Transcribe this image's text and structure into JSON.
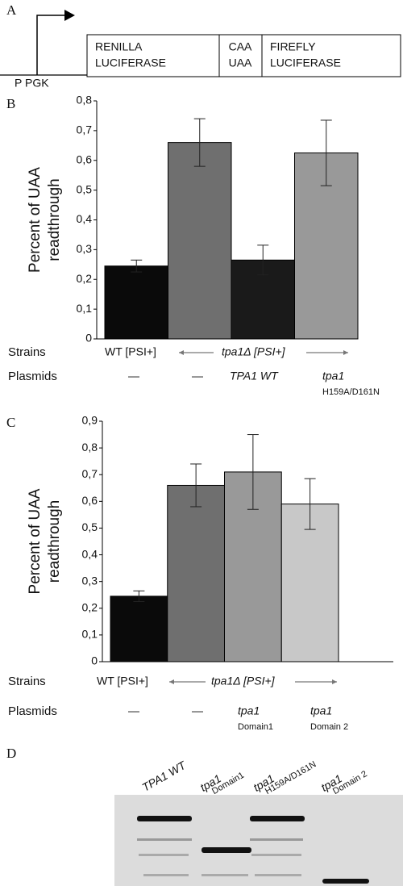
{
  "panel_labels": [
    "A",
    "B",
    "C",
    "D"
  ],
  "construct": {
    "promoter": "P PGK",
    "boxes": [
      [
        "RENILLA",
        "LUCIFERASE"
      ],
      [
        "CAA",
        "UAA"
      ],
      [
        "FIREFLY",
        "LUCIFERASE"
      ]
    ]
  },
  "chart_data": [
    {
      "type": "bar",
      "ylabel": [
        "Percent of UAA",
        "readthrough"
      ],
      "values": [
        0.245,
        0.66,
        0.265,
        0.625
      ],
      "errors": [
        0.02,
        0.08,
        0.05,
        0.11
      ],
      "colors": [
        "#0a0a0a",
        "#6f6f6f",
        "#1a1a1a",
        "#999999"
      ],
      "ylim": [
        0,
        0.8
      ],
      "yticks": [
        0,
        {
          "value": 0.1,
          "label": "0,1"
        },
        {
          "value": 0.2,
          "label": "0,2"
        },
        {
          "value": 0.3,
          "label": "0,3"
        },
        {
          "value": 0.4,
          "label": "0,4"
        },
        {
          "value": 0.5,
          "label": "0,5"
        },
        {
          "value": 0.6,
          "label": "0,6"
        },
        {
          "value": 0.7,
          "label": "0,7"
        },
        {
          "value": 0.8,
          "label": "0,8"
        }
      ],
      "strains_label": "Strains",
      "strains": [
        "WT [PSI+]",
        "tpa1Δ [PSI+]"
      ],
      "plasmids_label": "Plasmids",
      "plasmids": [
        [
          "—"
        ],
        [
          "—"
        ],
        [
          "TPA1 WT"
        ],
        [
          "tpa1",
          "H159A/D161N"
        ]
      ]
    },
    {
      "type": "bar",
      "ylabel": [
        "Percent of UAA",
        "readthrough"
      ],
      "values": [
        0.245,
        0.66,
        0.71,
        0.59
      ],
      "errors": [
        0.02,
        0.08,
        0.14,
        0.095
      ],
      "colors": [
        "#0a0a0a",
        "#6f6f6f",
        "#999999",
        "#c8c8c8"
      ],
      "ylim": [
        0,
        0.9
      ],
      "yticks": [
        0,
        {
          "value": 0.1,
          "label": "0,1"
        },
        {
          "value": 0.2,
          "label": "0,2"
        },
        {
          "value": 0.3,
          "label": "0,3"
        },
        {
          "value": 0.4,
          "label": "0,4"
        },
        {
          "value": 0.5,
          "label": "0,5"
        },
        {
          "value": 0.6,
          "label": "0,6"
        },
        {
          "value": 0.7,
          "label": "0,7"
        },
        {
          "value": 0.8,
          "label": "0,8"
        },
        {
          "value": 0.9,
          "label": "0,9"
        }
      ],
      "strains_label": "Strains",
      "strains": [
        "WT [PSI+]",
        "tpa1Δ [PSI+]"
      ],
      "plasmids_label": "Plasmids",
      "plasmids": [
        [
          "—"
        ],
        [
          "—"
        ],
        [
          "tpa1",
          "Domain1"
        ],
        [
          "tpa1",
          "Domain 2"
        ]
      ]
    }
  ],
  "gel": {
    "lanes": [
      [
        "TPA1 WT"
      ],
      [
        "tpa1",
        "Domain1"
      ],
      [
        "tpa1",
        "H159A/D161N"
      ],
      [
        "tpa1",
        "Domain 2"
      ]
    ]
  }
}
